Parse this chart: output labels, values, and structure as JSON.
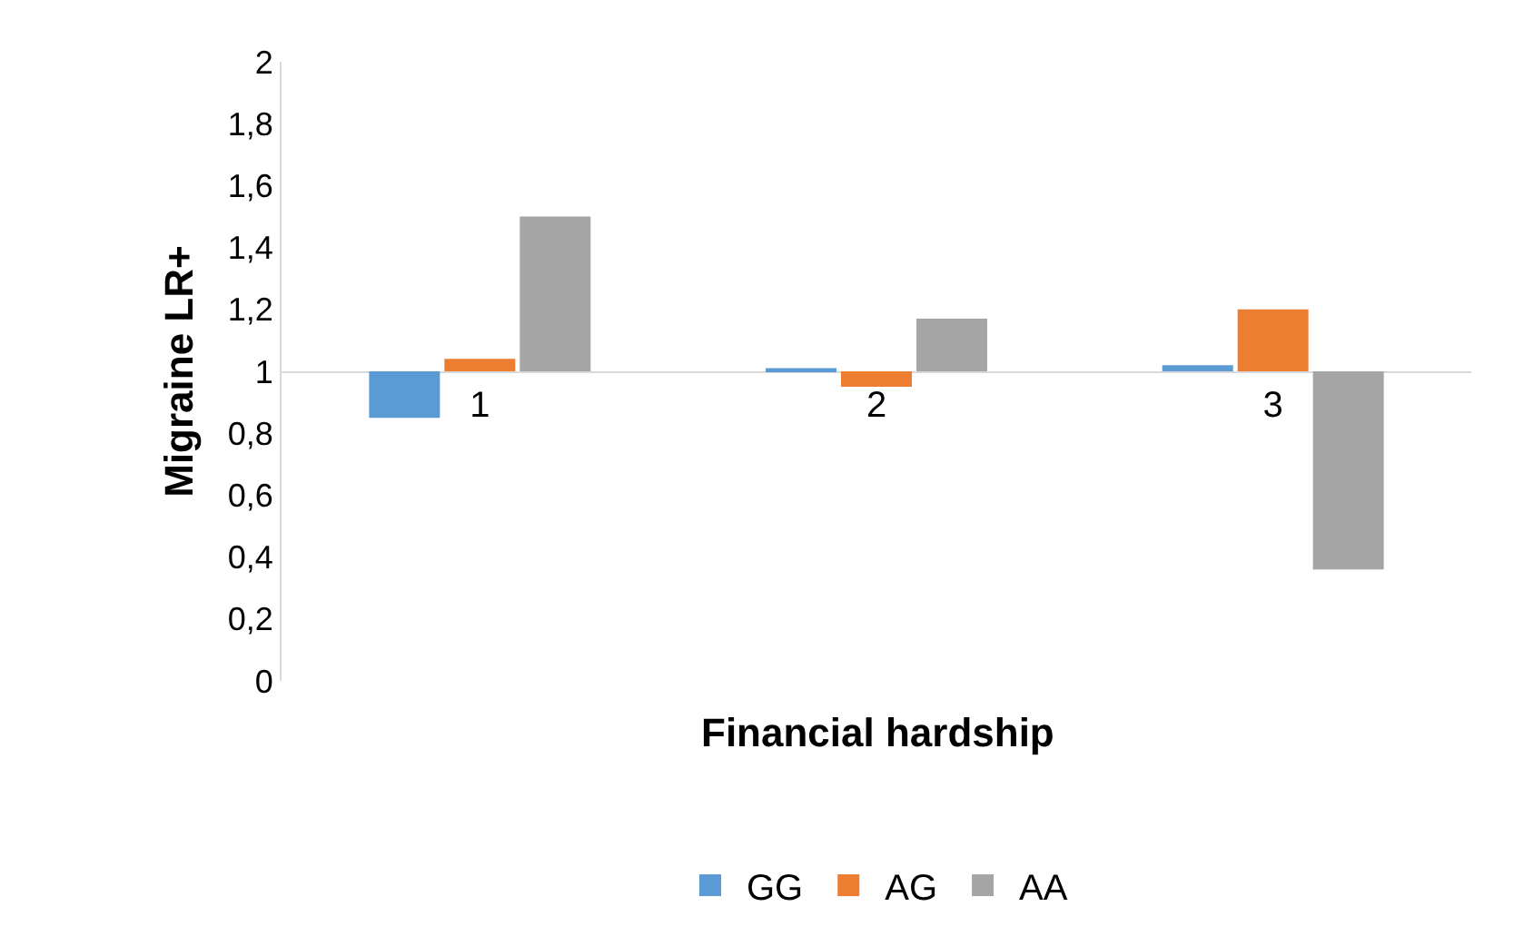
{
  "chart_data": {
    "type": "bar",
    "xlabel": "Financial hardship",
    "ylabel": "Migraine LR+",
    "categories": [
      "1",
      "2",
      "3"
    ],
    "series": [
      {
        "name": "GG",
        "color": "#5b9bd5",
        "base": [
          1,
          1,
          1
        ],
        "values": [
          -0.15,
          0.01,
          0.02
        ]
      },
      {
        "name": "AG",
        "color": "#ed7d31",
        "base": [
          1,
          1,
          1
        ],
        "values": [
          0.04,
          -0.05,
          0.2
        ]
      },
      {
        "name": "AA",
        "color": "#a5a5a5",
        "base": [
          1,
          1,
          1
        ],
        "values": [
          0.5,
          0.17,
          -0.64
        ]
      }
    ],
    "ylim": [
      0,
      2
    ],
    "yticks": [
      0,
      {
        "value": 0.2,
        "label": "0,2"
      },
      {
        "value": 0.4,
        "label": "0,4"
      },
      {
        "value": 0.6,
        "label": "0,6"
      },
      {
        "value": 0.8,
        "label": "0,8"
      },
      1,
      {
        "value": 1.2,
        "label": "1,2"
      },
      {
        "value": 1.4,
        "label": "1,4"
      },
      {
        "value": 1.6,
        "label": "1,6"
      },
      {
        "value": 1.8,
        "label": "1,8"
      },
      2
    ],
    "legend": "bottom"
  }
}
